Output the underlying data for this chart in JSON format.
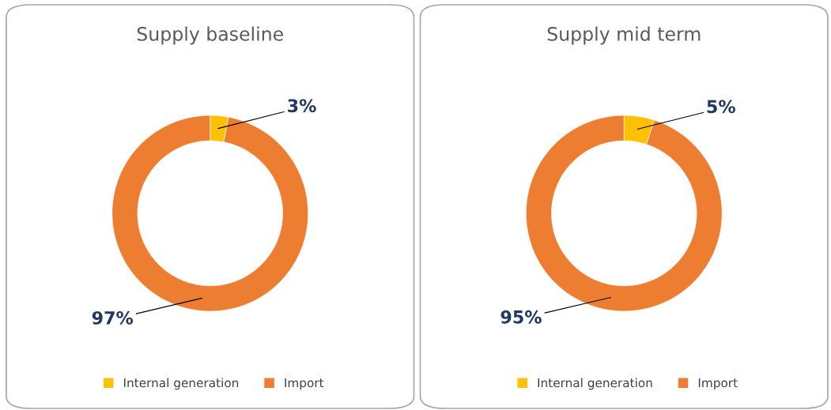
{
  "chart_data": [
    {
      "type": "donut",
      "title": "Supply baseline",
      "categories": [
        "Internal generation",
        "Import"
      ],
      "values": [
        3,
        97
      ],
      "colors": [
        "#ffc000",
        "#ed7d31"
      ],
      "value_labels": [
        "3%",
        "97%"
      ],
      "legend": "bottom"
    },
    {
      "type": "donut",
      "title": "Supply mid term",
      "categories": [
        "Internal generation",
        "Import"
      ],
      "values": [
        5,
        95
      ],
      "colors": [
        "#ffc000",
        "#ed7d31"
      ],
      "value_labels": [
        "5%",
        "95%"
      ],
      "legend": "bottom"
    }
  ]
}
